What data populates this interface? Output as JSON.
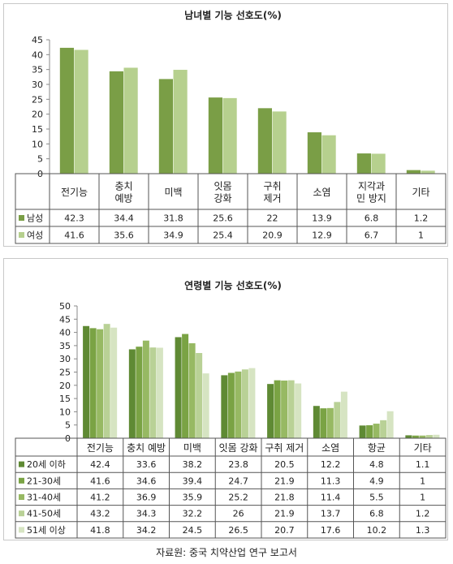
{
  "chart_data": [
    {
      "type": "bar",
      "title": "남녀별 기능 선호도(%)",
      "categories": [
        [
          "전기능"
        ],
        [
          "충치",
          "예방"
        ],
        [
          "미백"
        ],
        [
          "잇몸",
          "강화"
        ],
        [
          "구취",
          "제거"
        ],
        [
          "소염"
        ],
        [
          "지각과",
          "민 방지"
        ],
        [
          "기타"
        ]
      ],
      "series": [
        {
          "name": "남성",
          "color": "#7a9e46",
          "values": [
            42.3,
            34.4,
            31.8,
            25.6,
            22,
            13.9,
            6.8,
            1.2
          ]
        },
        {
          "name": "여성",
          "color": "#b6d08e",
          "values": [
            41.6,
            35.6,
            34.9,
            25.4,
            20.9,
            12.9,
            6.7,
            1
          ]
        }
      ],
      "ylim": [
        0,
        45
      ],
      "yticks": [
        0,
        5,
        10,
        15,
        20,
        25,
        30,
        35,
        40,
        45
      ],
      "grid": false,
      "legend": "data-table"
    },
    {
      "type": "bar",
      "title": "연령별 기능 선호도(%)",
      "categories": [
        [
          "전기능"
        ],
        [
          "충치 예방"
        ],
        [
          "미백"
        ],
        [
          "잇몸 강화"
        ],
        [
          "구취 제거"
        ],
        [
          "소염"
        ],
        [
          "항균"
        ],
        [
          "기타"
        ]
      ],
      "series": [
        {
          "name": "20세 이하",
          "color": "#5f8a34",
          "values": [
            42.4,
            33.6,
            38.2,
            23.8,
            20.5,
            12.2,
            4.8,
            1.1
          ]
        },
        {
          "name": "21-30세",
          "color": "#7aa344",
          "values": [
            41.6,
            34.6,
            39.4,
            24.7,
            21.9,
            11.3,
            4.9,
            1
          ]
        },
        {
          "name": "31-40세",
          "color": "#97b963",
          "values": [
            41.2,
            36.9,
            35.9,
            25.2,
            21.8,
            11.4,
            5.5,
            1
          ]
        },
        {
          "name": "41-50세",
          "color": "#b9d196",
          "values": [
            43.2,
            34.3,
            32.2,
            26,
            21.9,
            13.7,
            6.8,
            1.2
          ]
        },
        {
          "name": "51세 이상",
          "color": "#d6e4c2",
          "values": [
            41.8,
            34.2,
            24.5,
            26.5,
            20.7,
            17.6,
            10.2,
            1.3
          ]
        }
      ],
      "ylim": [
        0,
        50
      ],
      "yticks": [
        0,
        5,
        10,
        15,
        20,
        25,
        30,
        35,
        40,
        45,
        50
      ],
      "grid": false,
      "legend": "data-table"
    }
  ],
  "source": "자료원: 중국 치약산업 연구 보고서"
}
